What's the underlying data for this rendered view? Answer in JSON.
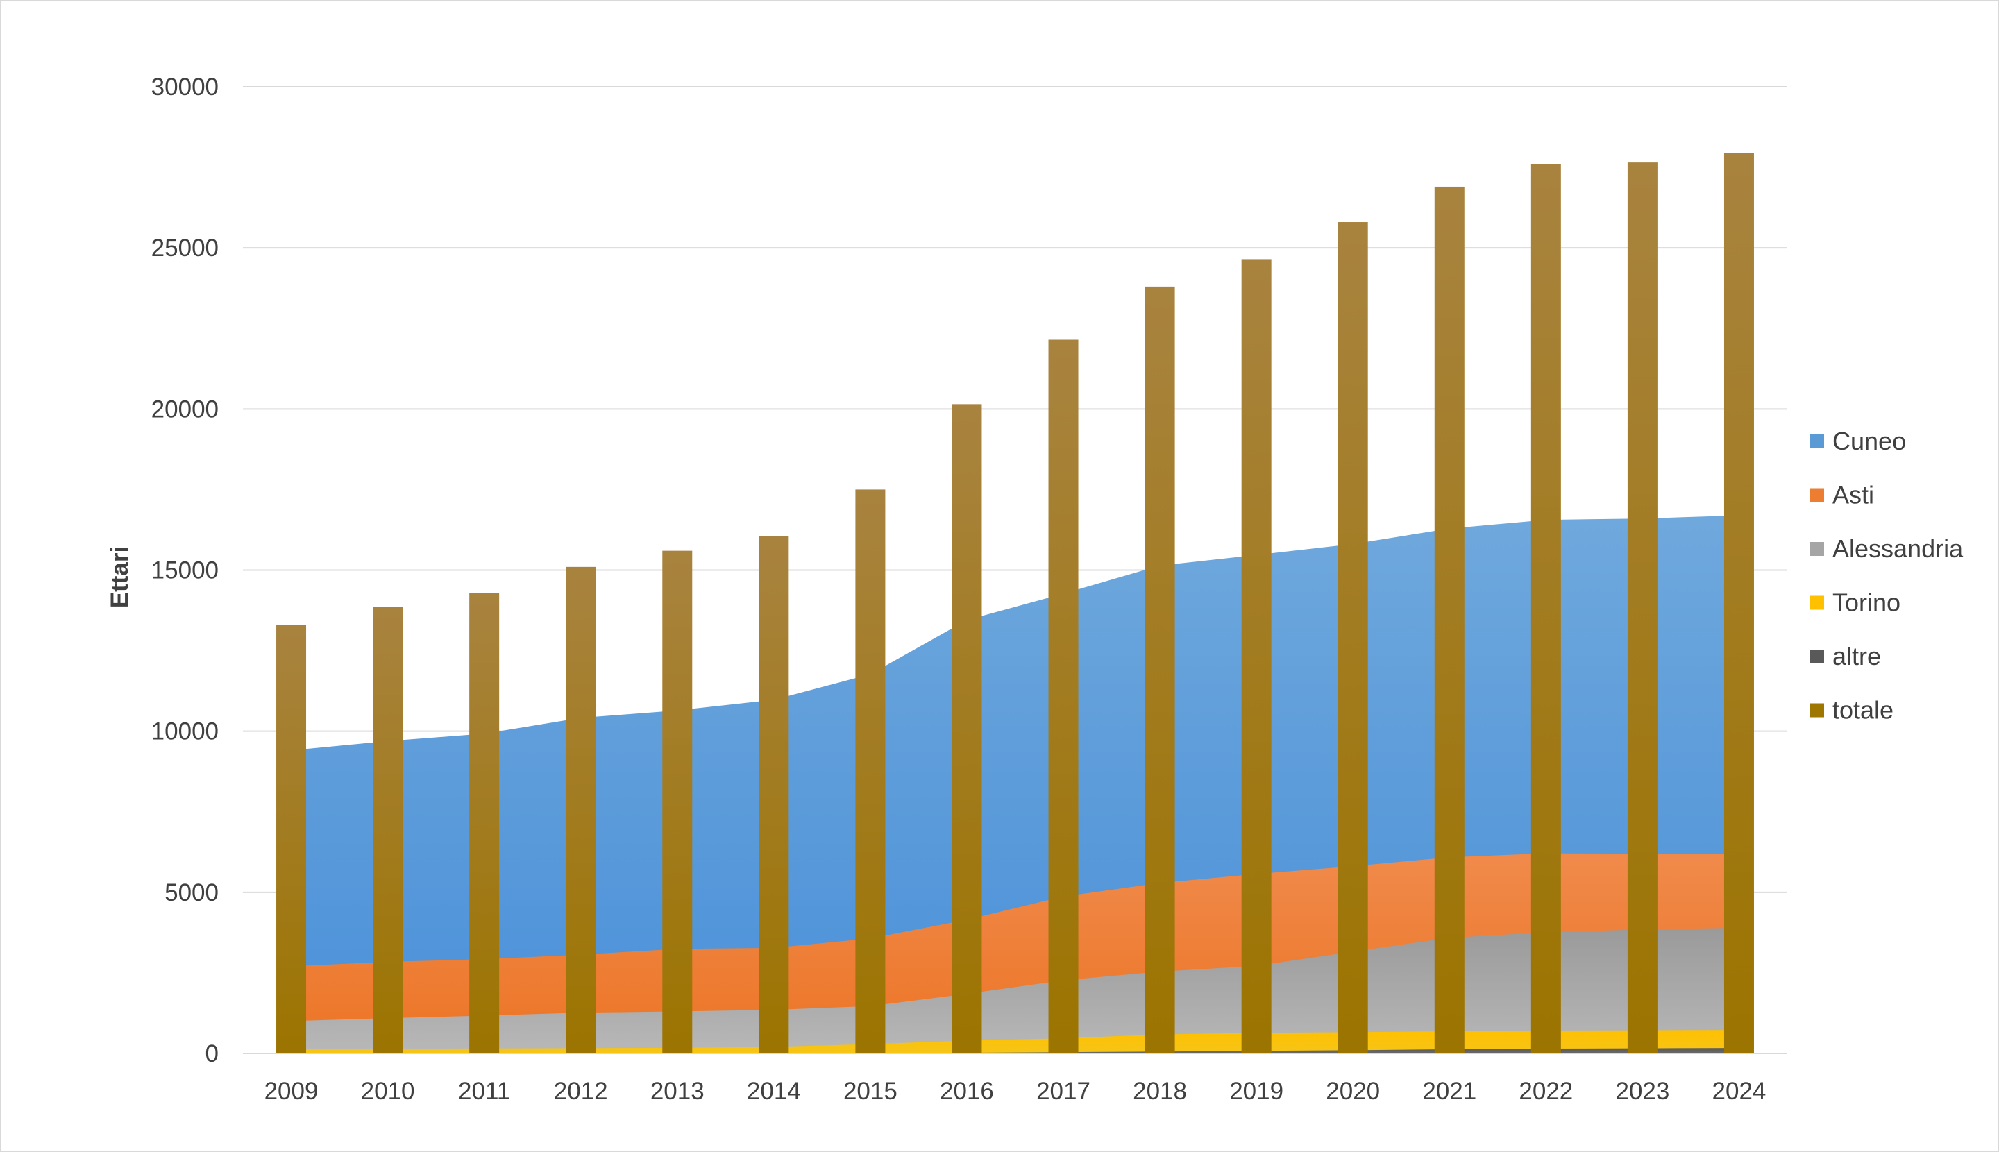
{
  "chart_data": {
    "type": "area",
    "title": "",
    "xlabel": "",
    "ylabel": "Ettari",
    "ylim": [
      0,
      30000
    ],
    "yticks": [
      0,
      5000,
      10000,
      15000,
      20000,
      25000,
      30000
    ],
    "grid": true,
    "legend_position": "right",
    "categories": [
      "2009",
      "2010",
      "2011",
      "2012",
      "2013",
      "2014",
      "2015",
      "2016",
      "2017",
      "2018",
      "2019",
      "2020",
      "2021",
      "2022",
      "2023",
      "2024"
    ],
    "stacked_areas": [
      {
        "name": "altre",
        "color": "#595959",
        "values": [
          5,
          5,
          5,
          5,
          5,
          5,
          10,
          20,
          40,
          60,
          80,
          100,
          130,
          150,
          160,
          170
        ]
      },
      {
        "name": "Torino",
        "color": "#ffc000",
        "values": [
          130,
          140,
          150,
          160,
          170,
          200,
          280,
          380,
          430,
          530,
          560,
          560,
          560,
          560,
          560,
          560
        ]
      },
      {
        "name": "Alessandria",
        "color": "#a5a5a5",
        "values": [
          870,
          950,
          1020,
          1100,
          1130,
          1150,
          1180,
          1450,
          1800,
          1950,
          2080,
          2500,
          2900,
          3050,
          3130,
          3170
        ]
      },
      {
        "name": "Asti",
        "color": "#ed7d31",
        "values": [
          1700,
          1750,
          1750,
          1800,
          1940,
          1920,
          2100,
          2300,
          2600,
          2750,
          2850,
          2650,
          2500,
          2450,
          2350,
          2300
        ]
      },
      {
        "name": "Cuneo",
        "color": "#5b9bd5",
        "values": [
          6700,
          6850,
          7000,
          7350,
          7400,
          7700,
          8200,
          9300,
          9400,
          9850,
          9900,
          10000,
          10200,
          10350,
          10400,
          10500
        ]
      }
    ],
    "bar_series": {
      "name": "totale",
      "color": "#9e7700",
      "values": [
        13300,
        13850,
        14300,
        15100,
        15600,
        16050,
        17500,
        20150,
        22150,
        23800,
        24650,
        25800,
        26900,
        27600,
        27650,
        27950
      ]
    },
    "legend": [
      {
        "name": "Cuneo",
        "color": "#5b9bd5"
      },
      {
        "name": "Asti",
        "color": "#ed7d31"
      },
      {
        "name": "Alessandria",
        "color": "#a5a5a5"
      },
      {
        "name": "Torino",
        "color": "#ffc000"
      },
      {
        "name": "altre",
        "color": "#595959"
      },
      {
        "name": "totale",
        "color": "#9e7700"
      }
    ]
  }
}
